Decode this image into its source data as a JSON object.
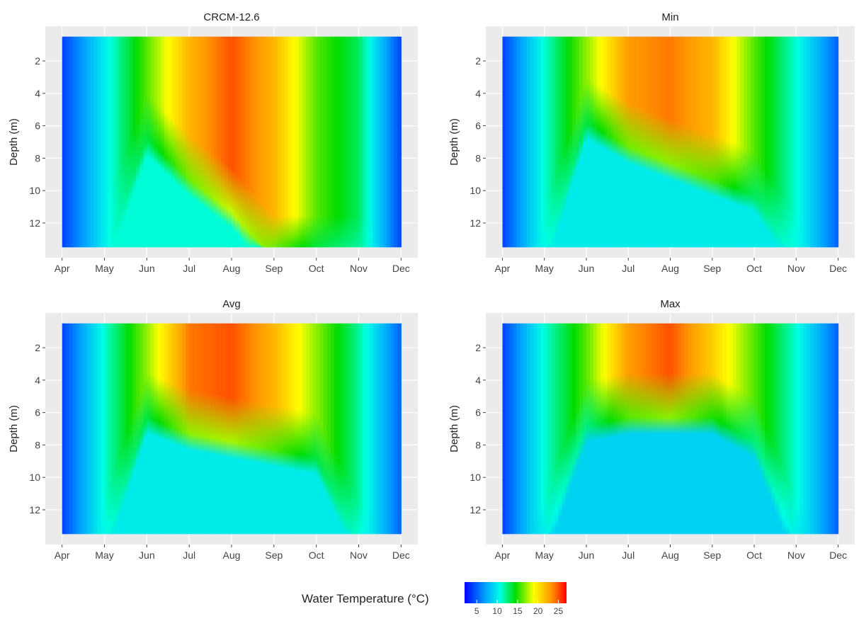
{
  "chart_data": [
    {
      "type": "heatmap",
      "title": "CRCM-12.6",
      "xlabel": "",
      "ylabel": "Depth (m)",
      "x_ticks": [
        "Apr",
        "May",
        "Jun",
        "Jul",
        "Aug",
        "Sep",
        "Oct",
        "Nov",
        "Dec"
      ],
      "y_ticks": [
        "2",
        "4",
        "6",
        "8",
        "10",
        "12"
      ],
      "y_range": [
        0.5,
        13.5
      ],
      "y_reversed": true,
      "grid": true,
      "surface_temp_by_month": [
        4,
        10,
        16,
        22,
        25,
        22,
        16,
        13,
        4
      ],
      "thermocline_depth_by_month": [
        13.5,
        13.5,
        6,
        8.5,
        10.5,
        13.5,
        13.5,
        13.5,
        13.5
      ],
      "bottom_temp": 11
    },
    {
      "type": "heatmap",
      "title": "Min",
      "xlabel": "",
      "ylabel": "Depth (m)",
      "x_ticks": [
        "Apr",
        "May",
        "Jun",
        "Jul",
        "Aug",
        "Sep",
        "Oct",
        "Nov",
        "Dec"
      ],
      "y_ticks": [
        "2",
        "4",
        "6",
        "8",
        "10",
        "12"
      ],
      "y_range": [
        0.5,
        13.5
      ],
      "y_reversed": true,
      "grid": true,
      "surface_temp_by_month": [
        4,
        11,
        17,
        23,
        24,
        22,
        16,
        11,
        5
      ],
      "thermocline_depth_by_month": [
        13.5,
        13.5,
        5,
        6.5,
        7.5,
        8.5,
        9.5,
        13.5,
        13.5
      ],
      "bottom_temp": 10
    },
    {
      "type": "heatmap",
      "title": "Avg",
      "xlabel": "",
      "ylabel": "Depth (m)",
      "x_ticks": [
        "Apr",
        "May",
        "Jun",
        "Jul",
        "Aug",
        "Sep",
        "Oct",
        "Nov",
        "Dec"
      ],
      "y_ticks": [
        "2",
        "4",
        "6",
        "8",
        "10",
        "12"
      ],
      "y_range": [
        0.5,
        13.5
      ],
      "y_reversed": true,
      "grid": true,
      "surface_temp_by_month": [
        4,
        11,
        17,
        24,
        25,
        22,
        17,
        12,
        5
      ],
      "thermocline_depth_by_month": [
        13.5,
        13.5,
        5.5,
        6.5,
        7,
        7.5,
        8,
        13.5,
        13.5
      ],
      "bottom_temp": 10
    },
    {
      "type": "heatmap",
      "title": "Max",
      "xlabel": "",
      "ylabel": "Depth (m)",
      "x_ticks": [
        "Apr",
        "May",
        "Jun",
        "Jul",
        "Aug",
        "Sep",
        "Oct",
        "Nov",
        "Dec"
      ],
      "y_ticks": [
        "2",
        "4",
        "6",
        "8",
        "10",
        "12"
      ],
      "y_range": [
        0.5,
        13.5
      ],
      "y_reversed": true,
      "grid": true,
      "surface_temp_by_month": [
        4,
        11,
        16,
        23,
        25,
        21,
        16,
        11,
        5
      ],
      "thermocline_depth_by_month": [
        13.5,
        13.5,
        6,
        5.5,
        5.5,
        5.5,
        7,
        13.5,
        13.5
      ],
      "bottom_temp": 9
    }
  ],
  "legend": {
    "title": "Water Temperature (°C)",
    "ticks": [
      "5",
      "10",
      "15",
      "20",
      "25"
    ],
    "range": [
      2,
      27
    ]
  }
}
